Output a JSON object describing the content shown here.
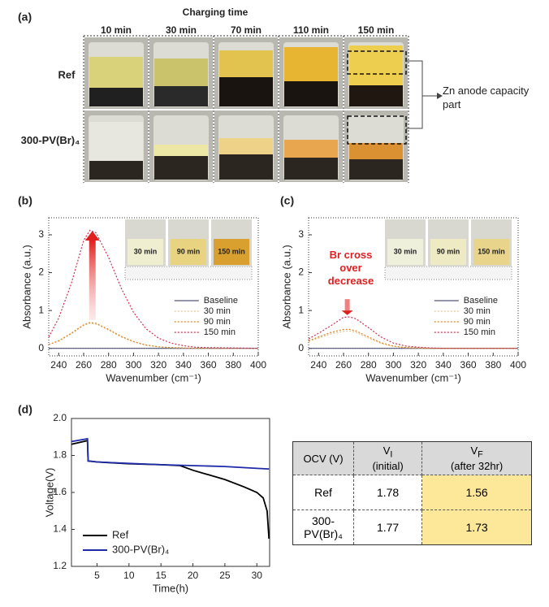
{
  "panel_a": {
    "label": "(a)",
    "title": "Charging time",
    "columns": [
      "10 min",
      "30 min",
      "70 min",
      "110 min",
      "150 min"
    ],
    "rows": [
      "Ref",
      "300-PV(Br)₄"
    ],
    "annotation": "Zn anode capacity part"
  },
  "chart_data": [
    {
      "type": "line",
      "panel_label": "(b)",
      "x_label": "Wavenumber (cm⁻¹)",
      "y_label": "Absorbance (a.u.)",
      "xlim": [
        232,
        400
      ],
      "ylim": [
        -0.2,
        3.45
      ],
      "xticks": [
        240,
        260,
        280,
        300,
        320,
        340,
        360,
        380,
        400
      ],
      "yticks": [
        0,
        1,
        2,
        3
      ],
      "frame": "dotted",
      "legend": "center right",
      "inset_labels": [
        "30 min",
        "90 min",
        "150 min"
      ],
      "x": [
        232,
        240,
        250,
        260,
        265,
        270,
        280,
        290,
        300,
        310,
        320,
        330,
        340,
        350,
        360,
        380,
        400
      ],
      "series": [
        {
          "name": "Baseline",
          "color": "#555577",
          "style": "solid",
          "values": [
            0,
            0,
            0,
            0,
            0,
            0,
            0,
            0,
            0,
            0,
            0,
            0,
            0,
            0,
            0,
            0,
            0
          ]
        },
        {
          "name": "30 min",
          "color": "#e2c98e",
          "style": "dotted",
          "values": [
            0.1,
            0.19,
            0.38,
            0.6,
            0.66,
            0.64,
            0.48,
            0.3,
            0.17,
            0.08,
            0.04,
            0.02,
            0.01,
            0,
            0,
            0,
            0
          ]
        },
        {
          "name": "90 min",
          "color": "#e08020",
          "style": "dotted",
          "values": [
            0.1,
            0.2,
            0.4,
            0.62,
            0.68,
            0.66,
            0.5,
            0.32,
            0.18,
            0.09,
            0.04,
            0.02,
            0.01,
            0,
            0,
            0,
            0
          ]
        },
        {
          "name": "150 min",
          "color": "#d03050",
          "style": "dotted",
          "values": [
            0.3,
            0.8,
            1.7,
            2.85,
            3.12,
            3.05,
            2.4,
            1.6,
            0.95,
            0.52,
            0.27,
            0.14,
            0.07,
            0.03,
            0.02,
            0.01,
            0
          ]
        }
      ]
    },
    {
      "type": "line",
      "panel_label": "(c)",
      "x_label": "Wavenumber (cm⁻¹)",
      "y_label": "Absorbance (a.u.)",
      "xlim": [
        232,
        400
      ],
      "ylim": [
        -0.2,
        3.45
      ],
      "xticks": [
        240,
        260,
        280,
        300,
        320,
        340,
        360,
        380,
        400
      ],
      "yticks": [
        0,
        1,
        2,
        3
      ],
      "frame": "dotted",
      "legend": "center right",
      "inset_labels": [
        "30 min",
        "90 min",
        "150 min"
      ],
      "annotation": "Br cross over decrease",
      "x": [
        232,
        240,
        250,
        260,
        265,
        270,
        280,
        290,
        300,
        310,
        320,
        330,
        340,
        350,
        360,
        380,
        400
      ],
      "series": [
        {
          "name": "Baseline",
          "color": "#555577",
          "style": "solid",
          "values": [
            0,
            0,
            0,
            0,
            0,
            0,
            0,
            0,
            0,
            0,
            0,
            0,
            0,
            0,
            0,
            0,
            0
          ]
        },
        {
          "name": "30 min",
          "color": "#e2c98e",
          "style": "dotted",
          "values": [
            0.18,
            0.27,
            0.38,
            0.45,
            0.46,
            0.42,
            0.27,
            0.13,
            0.05,
            0.02,
            0.01,
            0,
            0,
            0,
            0,
            0,
            0
          ]
        },
        {
          "name": "90 min",
          "color": "#e08020",
          "style": "dotted",
          "values": [
            0.2,
            0.3,
            0.42,
            0.5,
            0.5,
            0.46,
            0.3,
            0.15,
            0.06,
            0.02,
            0.01,
            0,
            0,
            0,
            0,
            0,
            0
          ]
        },
        {
          "name": "150 min",
          "color": "#d03050",
          "style": "dotted",
          "values": [
            0.25,
            0.4,
            0.6,
            0.82,
            0.83,
            0.78,
            0.55,
            0.3,
            0.14,
            0.06,
            0.03,
            0.01,
            0,
            0,
            0,
            0,
            0
          ]
        }
      ]
    },
    {
      "type": "line",
      "panel_label": "(d)",
      "x_label": "Time(h)",
      "y_label": "Voltage(V)",
      "xlim": [
        1,
        32
      ],
      "ylim": [
        1.2,
        2.0
      ],
      "xticks": [
        5,
        10,
        15,
        20,
        25,
        30
      ],
      "yticks": [
        1.2,
        1.4,
        1.6,
        1.8,
        {
          "value": 2,
          "label": "2.0"
        }
      ],
      "frame": "solid",
      "legend": "lower left",
      "series": [
        {
          "name": "Ref",
          "color": "#000000",
          "style": "solid",
          "x": [
            1,
            3.5,
            3.6,
            5,
            10,
            15,
            18,
            20,
            25,
            28,
            30,
            31,
            31.6,
            31.9
          ],
          "values": [
            1.86,
            1.88,
            1.77,
            1.765,
            1.755,
            1.75,
            1.745,
            1.72,
            1.67,
            1.63,
            1.6,
            1.57,
            1.5,
            1.35
          ]
        },
        {
          "name": "300-PV(Br)₄",
          "color": "#1f2aa8",
          "style": "solid",
          "x": [
            1,
            3.5,
            3.6,
            5,
            10,
            15,
            20,
            25,
            30,
            31.9
          ],
          "values": [
            1.875,
            1.89,
            1.77,
            1.765,
            1.757,
            1.75,
            1.745,
            1.74,
            1.73,
            1.727
          ]
        }
      ]
    }
  ],
  "table": {
    "header": [
      "OCV (V)",
      {
        "symbol": "V",
        "subscript": "I",
        "note": "(initial)"
      },
      {
        "symbol": "V",
        "subscript": "F",
        "note": "(after 32hr)"
      }
    ],
    "rows": [
      [
        "Ref",
        1.78,
        1.56
      ],
      [
        "300-PV(Br)₄",
        1.77,
        1.73
      ]
    ],
    "highlight_column": 2,
    "highlight_color": "#fde89a"
  }
}
